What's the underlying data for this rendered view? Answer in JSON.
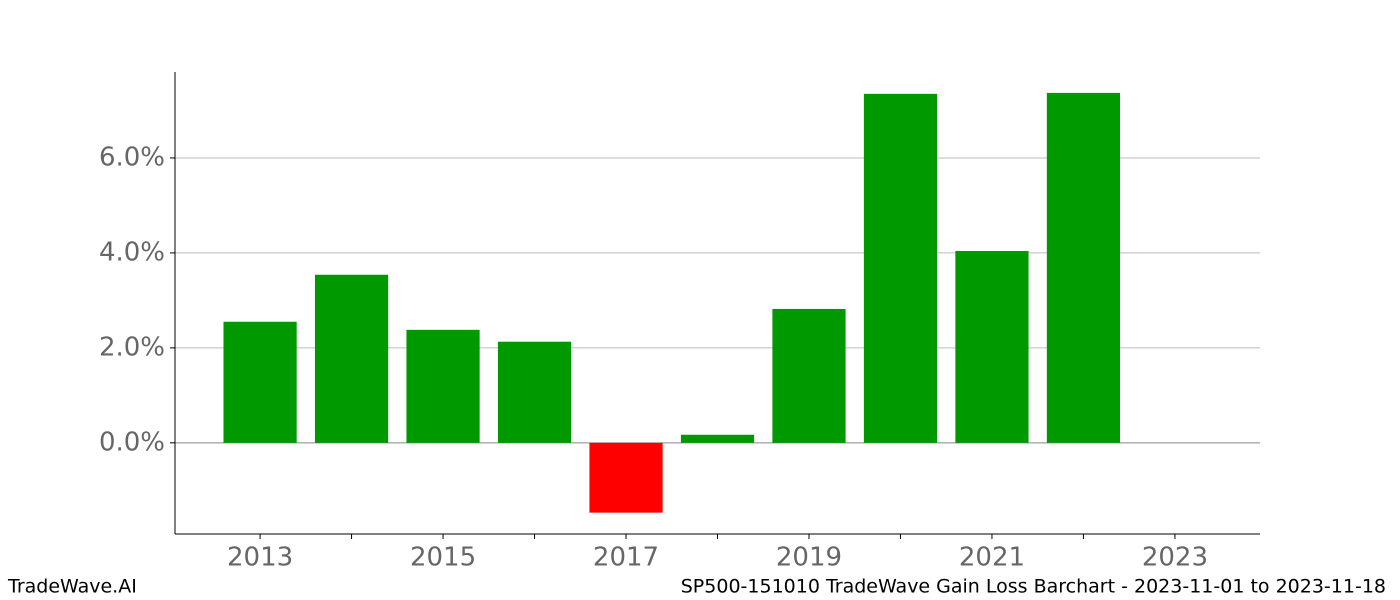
{
  "chart_data": {
    "type": "bar",
    "x": [
      2013,
      2014,
      2015,
      2016,
      2017,
      2018,
      2019,
      2020,
      2021,
      2022
    ],
    "values": [
      2.55,
      3.54,
      2.38,
      2.13,
      -1.47,
      0.17,
      2.82,
      7.35,
      4.04,
      7.37
    ],
    "colors": [
      "#009900",
      "#009900",
      "#009900",
      "#009900",
      "#ff0000",
      "#009900",
      "#009900",
      "#009900",
      "#009900",
      "#009900"
    ],
    "xlim": [
      2012.07,
      2023.93
    ],
    "xticks": [
      2013,
      2015,
      2017,
      2019,
      2021,
      2023
    ],
    "xminor_ticks": [
      2014,
      2016,
      2018,
      2020,
      2022
    ],
    "ylim": [
      -1.92,
      7.81
    ],
    "yticks": [
      {
        "value": 0,
        "label": "0.0%"
      },
      {
        "value": 2,
        "label": "2.0%"
      },
      {
        "value": 4,
        "label": "4.0%"
      },
      {
        "value": 6,
        "label": "6.0%"
      }
    ],
    "grid": true,
    "footer_left": "TradeWave.AI",
    "footer_right": "SP500-151010 TradeWave Gain Loss Barchart - 2023-11-01 to 2023-11-18"
  }
}
